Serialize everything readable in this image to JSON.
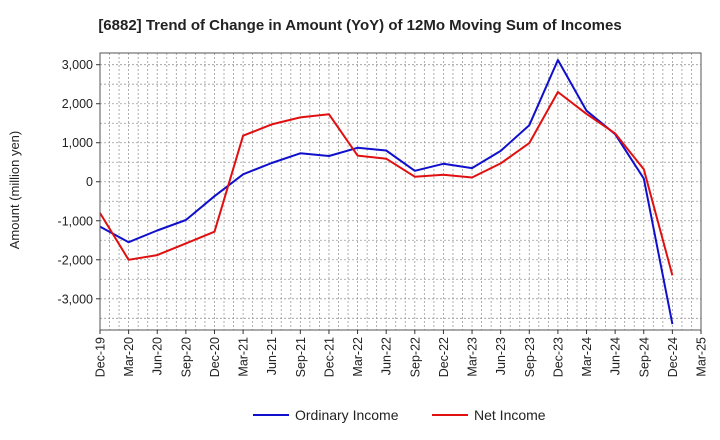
{
  "chart_data": {
    "type": "line",
    "title": "[6882]  Trend of Change in Amount (YoY) of 12Mo Moving Sum of Incomes",
    "xlabel": "",
    "ylabel": "Amount (million yen)",
    "ylim": [
      -3800,
      3300
    ],
    "yticks": [
      -3000,
      -2000,
      -1000,
      0,
      1000,
      2000,
      3000
    ],
    "ytick_labels": [
      "-3,000",
      "-2,000",
      "-1,000",
      "0",
      "1,000",
      "2,000",
      "3,000"
    ],
    "grid": true,
    "legend_position": "bottom-center",
    "categories": [
      "Dec-19",
      "Mar-20",
      "Jun-20",
      "Sep-20",
      "Dec-20",
      "Mar-21",
      "Jun-21",
      "Sep-21",
      "Dec-21",
      "Mar-22",
      "Jun-22",
      "Sep-22",
      "Dec-22",
      "Mar-23",
      "Jun-23",
      "Sep-23",
      "Dec-23",
      "Mar-24",
      "Jun-24",
      "Sep-24",
      "Dec-24",
      "Mar-25"
    ],
    "series": [
      {
        "name": "Ordinary Income",
        "color": "#1010cc",
        "values": [
          -1150,
          -1550,
          -1250,
          -980,
          -370,
          190,
          480,
          730,
          660,
          870,
          800,
          280,
          460,
          350,
          790,
          1450,
          3120,
          1820,
          1220,
          80,
          -3650,
          null
        ]
      },
      {
        "name": "Net Income",
        "color": "#e01010",
        "values": [
          -800,
          -2000,
          -1880,
          -1580,
          -1280,
          1180,
          1470,
          1650,
          1730,
          670,
          590,
          130,
          180,
          110,
          470,
          990,
          2300,
          1740,
          1240,
          320,
          -2400,
          null
        ]
      }
    ]
  }
}
